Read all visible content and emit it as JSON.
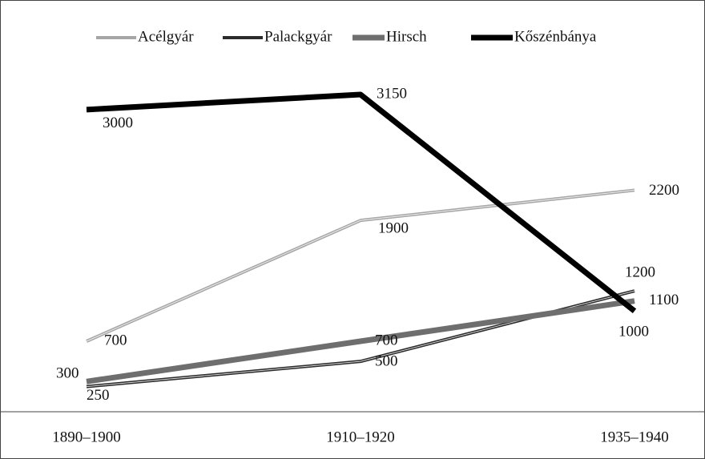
{
  "chart_data": {
    "type": "line",
    "categories": [
      "1890–1900",
      "1910–1920",
      "1935–1940"
    ],
    "series": [
      {
        "name": "Acélgyár",
        "color": "#a6a6a6",
        "values": [
          700,
          1900,
          2200
        ]
      },
      {
        "name": "Palackgyár",
        "color": "#2b2b2b",
        "values": [
          250,
          500,
          1200
        ]
      },
      {
        "name": "Hirsch",
        "color": "#6e6e6e",
        "values": [
          300,
          700,
          1100
        ]
      },
      {
        "name": "Kőszénbánya",
        "color": "#000000",
        "values": [
          3000,
          3150,
          1000
        ]
      }
    ],
    "ylim": [
      0,
      3500
    ]
  }
}
